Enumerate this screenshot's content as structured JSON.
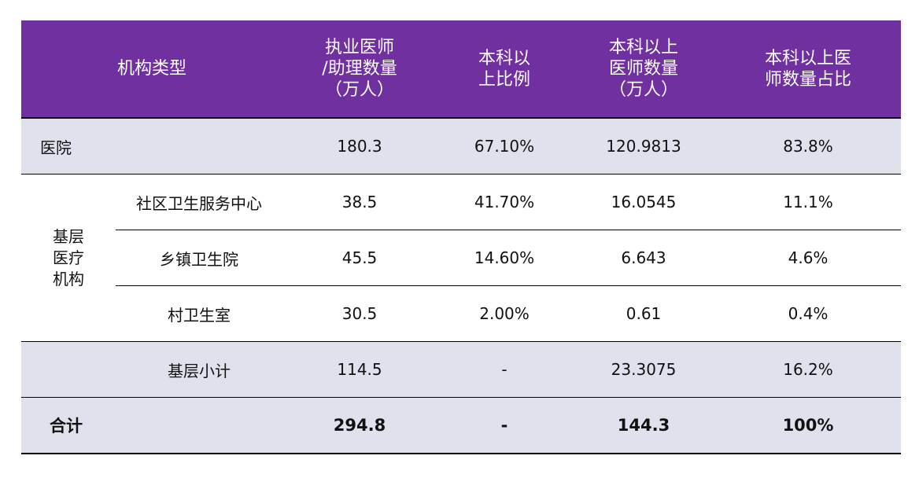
{
  "table": {
    "headers": {
      "type": "机构类型",
      "doctors": [
        "执业医师",
        "/助理数量",
        "（万人）"
      ],
      "ratio": [
        "本科以",
        "上比例"
      ],
      "count": [
        "本科以上",
        "医师数量",
        "（万人）"
      ],
      "share": [
        "本科以上医",
        "师数量占比"
      ]
    },
    "hospital": {
      "name": "医院",
      "doctors": "180.3",
      "ratio": "67.10%",
      "count": "120.9813",
      "share": "83.8%"
    },
    "grassroots_group": [
      "基层",
      "医疗",
      "机构"
    ],
    "grassroots": [
      {
        "name": "社区卫生服务中心",
        "doctors": "38.5",
        "ratio": "41.70%",
        "count": "16.0545",
        "share": "11.1%"
      },
      {
        "name": "乡镇卫生院",
        "doctors": "45.5",
        "ratio": "14.60%",
        "count": "6.643",
        "share": "4.6%"
      },
      {
        "name": "村卫生室",
        "doctors": "30.5",
        "ratio": "2.00%",
        "count": "0.61",
        "share": "0.4%"
      }
    ],
    "subtotal": {
      "name": "基层小计",
      "doctors": "114.5",
      "ratio": "-",
      "count": "23.3075",
      "share": "16.2%"
    },
    "total": {
      "name": "合计",
      "doctors": "294.8",
      "ratio": "-",
      "count": "144.3",
      "share": "100%"
    }
  }
}
